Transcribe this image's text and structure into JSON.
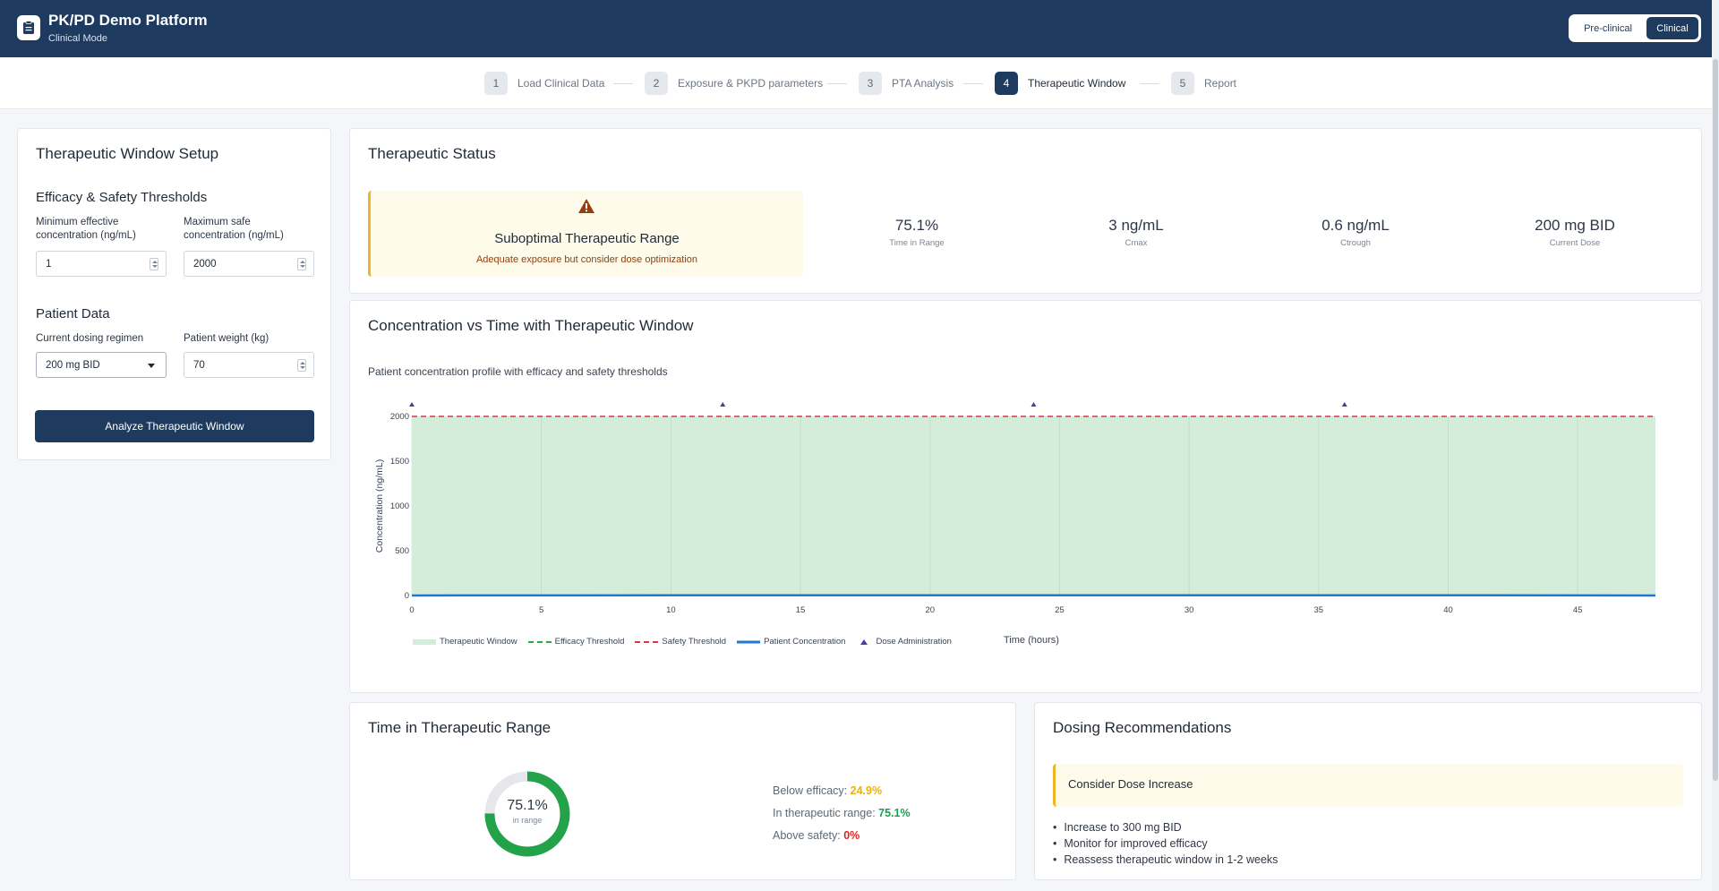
{
  "header": {
    "title": "PK/PD Demo Platform",
    "subtitle": "Clinical Mode",
    "modes": [
      "Pre-clinical",
      "Clinical"
    ],
    "active_mode": "Clinical"
  },
  "steps": [
    {
      "num": "1",
      "label": "Load Clinical Data"
    },
    {
      "num": "2",
      "label": "Exposure & PKPD parameters"
    },
    {
      "num": "3",
      "label": "PTA Analysis"
    },
    {
      "num": "4",
      "label": "Therapeutic Window"
    },
    {
      "num": "5",
      "label": "Report"
    }
  ],
  "active_step": 4,
  "setup": {
    "title": "Therapeutic Window Setup",
    "thresholds_title": "Efficacy & Safety Thresholds",
    "min_label": "Minimum effective concentration (ng/mL)",
    "min_value": "1",
    "max_label": "Maximum safe concentration (ng/mL)",
    "max_value": "2000",
    "patient_title": "Patient Data",
    "regimen_label": "Current dosing regimen",
    "regimen_value": "200 mg BID",
    "weight_label": "Patient weight (kg)",
    "weight_value": "70",
    "analyze_label": "Analyze Therapeutic Window"
  },
  "status": {
    "title": "Therapeutic Status",
    "alert_title": "Suboptimal Therapeutic Range",
    "alert_sub": "Adequate exposure but consider dose optimization",
    "alert_icon": "warning-icon",
    "metrics": [
      {
        "value": "75.1%",
        "label": "Time in Range"
      },
      {
        "value": "3 ng/mL",
        "label": "Cmax"
      },
      {
        "value": "0.6 ng/mL",
        "label": "Ctrough"
      },
      {
        "value": "200 mg BID",
        "label": "Current Dose"
      }
    ]
  },
  "chart": {
    "title": "Concentration vs Time with Therapeutic Window",
    "subtitle": "Patient concentration profile with efficacy and safety thresholds",
    "legend": [
      "Therapeutic Window",
      "Efficacy Threshold",
      "Safety Threshold",
      "Patient Concentration",
      "Dose Administration"
    ]
  },
  "chart_data": {
    "type": "line",
    "xlabel": "Time (hours)",
    "ylabel": "Concentration (ng/mL)",
    "xlim": [
      0,
      48
    ],
    "ylim": [
      0,
      2000
    ],
    "x_ticks": [
      0,
      5,
      10,
      15,
      20,
      25,
      30,
      35,
      40,
      45
    ],
    "y_ticks": [
      0,
      500,
      1000,
      1500,
      2000
    ],
    "efficacy_threshold": 1,
    "safety_threshold": 2000,
    "therapeutic_window": [
      1,
      2000
    ],
    "dose_times": [
      0,
      12,
      24,
      36
    ],
    "series": [
      {
        "name": "Patient Concentration",
        "x": [
          0,
          12,
          24,
          36,
          48
        ],
        "y": [
          0.6,
          3,
          3,
          3,
          0.6
        ]
      }
    ],
    "colors": {
      "window": "#d4edda",
      "efficacy": "#28a745",
      "safety": "#dc3545",
      "concentration": "#1f77d4",
      "dose": "#4b3c9e"
    }
  },
  "time_in_range": {
    "title": "Time in Therapeutic Range",
    "center_value": "75.1%",
    "center_label": "in range",
    "in_range_fraction": 0.751,
    "rows": [
      {
        "label": "Below efficacy: ",
        "value": "24.9%",
        "color": "#eab308"
      },
      {
        "label": "In therapeutic range: ",
        "value": "75.1%",
        "color": "#16a34a"
      },
      {
        "label": "Above safety: ",
        "value": "0%",
        "color": "#dc2626"
      }
    ]
  },
  "recommendations": {
    "title": "Dosing Recommendations",
    "box_title": "Consider Dose Increase",
    "items": [
      "Increase to 300 mg BID",
      "Monitor for improved efficacy",
      "Reassess therapeutic window in 1-2 weeks"
    ]
  }
}
